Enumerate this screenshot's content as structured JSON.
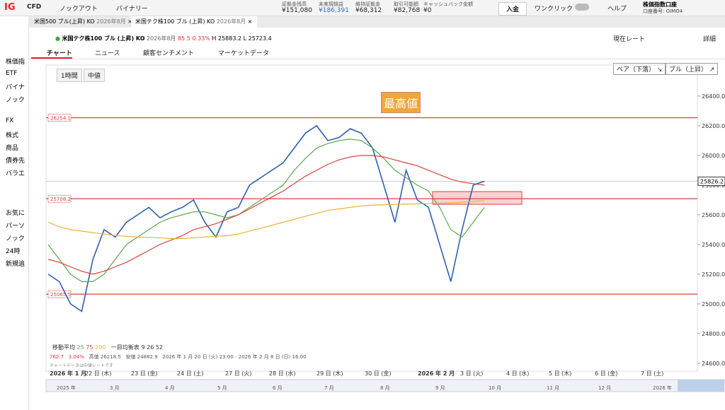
{
  "top_bar": {
    "logo": "IG",
    "menus": [
      "CFD",
      "ノックアウト",
      "バイナリー"
    ],
    "stats": [
      {
        "label": "証拠金残高",
        "value": "¥151,080"
      },
      {
        "label": "未実現損益",
        "value": "¥186,391"
      },
      {
        "label": "維持証拠金",
        "value": "¥68,312"
      },
      {
        "label": "取引可能額",
        "value": "¥82,768"
      },
      {
        "label": "キャッシュバック金額",
        "value": "¥0"
      }
    ],
    "deposit": "入金",
    "one_click": "ワンクリック",
    "help": "ヘルプ",
    "account": {
      "name": "株価指数口座",
      "number": "口座番号: OIMO4"
    }
  },
  "sidebar": {
    "items": [
      "株価指",
      "ETF",
      "バイナ",
      "ノック",
      "FX",
      "株式",
      "商品",
      "債券先",
      "バラエ",
      "お気に",
      "パーソ",
      "ノック",
      "24時",
      "新規追"
    ]
  },
  "tabs": [
    "米国500 ブル(上昇) KO",
    "2026年8月",
    "米国テク株100 ブル (上昇) KO",
    "2026年8月"
  ],
  "instrument": {
    "name": "米国テク株100 ブル (上昇) KO",
    "expiry": "2026年8月",
    "change": "85.5",
    "change_pct": "0.33%",
    "high": "H 25883.2",
    "low": "L 25723.4",
    "rate_label": "現在レート",
    "detail": "詳細"
  },
  "chart_tabs": [
    "チャート",
    "ニュース",
    "顧客センチメント",
    "マーケットデータ"
  ],
  "controls": {
    "interval": "1時間",
    "price": "中値",
    "bear": "ベア（下落）",
    "bull": "ブル（上昇）"
  },
  "annotation": "最高値",
  "chart_data": {
    "type": "line",
    "ylim": [
      24547,
      26609
    ],
    "yticks": [
      {
        "value": 24600,
        "label": "24600.0"
      },
      {
        "value": 24800,
        "label": "24800.0"
      },
      {
        "value": 25000,
        "label": "25000.0"
      },
      {
        "value": 25200,
        "label": "25200.0"
      },
      {
        "value": 25400,
        "label": "25400.0"
      },
      {
        "value": 25600,
        "label": "25600.0"
      },
      {
        "value": 25800,
        "label": "25800.0"
      },
      {
        "value": 26000,
        "label": "26000.0"
      },
      {
        "value": 26200,
        "label": "26200.0"
      },
      {
        "value": 26400,
        "label": "26400.0"
      }
    ],
    "levels": [
      26254.1,
      25708.2,
      25065.5
    ],
    "current_price": 25826.2,
    "series": [
      {
        "color": "#2f5fb0",
        "values": [
          25200,
          25150,
          25000,
          24950,
          25300,
          25500,
          25450,
          25550,
          25600,
          25650,
          25580,
          25620,
          25650,
          25700,
          25550,
          25450,
          25620,
          25650,
          25800,
          25850,
          25900,
          25950,
          26050,
          26150,
          26200,
          26100,
          26120,
          26180,
          26150,
          26050,
          25800,
          25550,
          25900,
          25700,
          25650,
          25400,
          25150,
          25500,
          25800,
          25826.2
        ]
      },
      {
        "name": "25",
        "color": "#5aa84f",
        "values": [
          25400,
          25300,
          25200,
          25150,
          25150,
          25200,
          25300,
          25400,
          25450,
          25500,
          25550,
          25580,
          25600,
          25620,
          25620,
          25600,
          25580,
          25600,
          25650,
          25700,
          25750,
          25800,
          25900,
          25980,
          26050,
          26080,
          26100,
          26110,
          26100,
          26050,
          25980,
          25900,
          25850,
          25800,
          25760,
          25650,
          25500,
          25450,
          25550,
          25650
        ]
      },
      {
        "name": "75",
        "color": "#d9413a",
        "values": [
          25300,
          25280,
          25250,
          25220,
          25200,
          25220,
          25250,
          25280,
          25320,
          25360,
          25400,
          25430,
          25460,
          25500,
          25520,
          25540,
          25570,
          25600,
          25640,
          25680,
          25720,
          25760,
          25810,
          25860,
          25900,
          25940,
          25970,
          25990,
          26000,
          26000,
          25990,
          25970,
          25950,
          25930,
          25900,
          25870,
          25840,
          25820,
          25810,
          25800
        ]
      },
      {
        "name": "200",
        "color": "#f0b030",
        "values": [
          25550,
          25520,
          25500,
          25490,
          25480,
          25470,
          25460,
          25455,
          25450,
          25448,
          25445,
          25440,
          25440,
          25445,
          25450,
          25455,
          25460,
          25470,
          25490,
          25510,
          25530,
          25550,
          25570,
          25590,
          25610,
          25630,
          25640,
          25650,
          25660,
          25665,
          25668,
          25670,
          25672,
          25674,
          25676,
          25678,
          25680,
          25685,
          25690,
          25695
        ]
      }
    ]
  },
  "legend": {
    "ma_label": "移動平均",
    "ichimoku_label": "一目均衡表",
    "ichimoku_periods": [
      "9",
      "26",
      "52"
    ]
  },
  "stats_line": {
    "change": "762.7",
    "pct": "3.04%",
    "high": "高値 26218.5",
    "low": "安値 24882.9",
    "range": "2026 年 1 月 20 日 (火) 23:00 - 2026 年 2 月 8 日 (日) 16:00",
    "note": "チャートデータは中値レートです"
  },
  "x_labels": [
    "2026 年 1 月",
    "22 日 (木)",
    "23 日 (金)",
    "24 日 (土)",
    "27 日 (火)",
    "28 日 (水)",
    "29 日 (木)",
    "30 日 (金)",
    "2026 年 2 月",
    "3 日 (火)",
    "4 日 (水)",
    "5 日 (木)",
    "6 日 (金)",
    "7 日 (土)"
  ],
  "navigator_labels": [
    "2025 年",
    "3 月",
    "4 月",
    "5 月",
    "6 月",
    "7 月",
    "8 月",
    "9 月",
    "10 月",
    "11 月",
    "12 月",
    "2026 年"
  ]
}
